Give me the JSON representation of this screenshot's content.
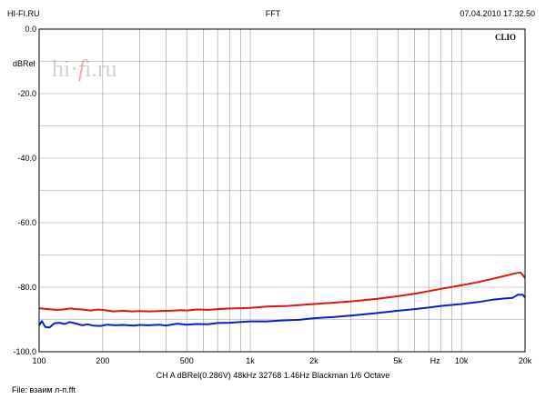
{
  "header": {
    "left": "HI-FI.RU",
    "center": "FFT",
    "right": "07.04.2010 17.32.50"
  },
  "watermark": {
    "pre": "hi·",
    "f": "f",
    "post": "i.ru"
  },
  "brand_label": "CLIO",
  "footer": {
    "settings": "CH A   dBRel(0.286V)   48kHz   32768   1.46Hz   Blackman   1/6 Octave",
    "file": "File: взаим л-п.fft"
  },
  "colors": {
    "series_red": "#e01414",
    "series_blue": "#0a1ed2",
    "grid": "#9a9a9a",
    "watermark_f": "#d0504c"
  },
  "chart_data": {
    "type": "line",
    "x_scale": "log",
    "xlim": [
      100,
      20000
    ],
    "ylim": [
      -100,
      0
    ],
    "ylabel": "dBRel",
    "x_ticks": [
      {
        "v": 100,
        "label": "100"
      },
      {
        "v": 200,
        "label": "200"
      },
      {
        "v": 500,
        "label": "500"
      },
      {
        "v": 1000,
        "label": "1k"
      },
      {
        "v": 2000,
        "label": "2k"
      },
      {
        "v": 5000,
        "label": "5k"
      },
      {
        "v": 7500,
        "label": "Hz"
      },
      {
        "v": 10000,
        "label": "10k"
      },
      {
        "v": 20000,
        "label": "20k"
      }
    ],
    "y_ticks": [
      {
        "v": 0,
        "label": "0.0"
      },
      {
        "v": -20,
        "label": "-20.0"
      },
      {
        "v": -40,
        "label": "-40.0"
      },
      {
        "v": -60,
        "label": "-60.0"
      },
      {
        "v": -80,
        "label": "-80.0"
      },
      {
        "v": -100,
        "label": "-100.0"
      }
    ],
    "grid": true,
    "series": [
      {
        "color": "#e01414",
        "points": [
          [
            100,
            -86.5
          ],
          [
            110,
            -86.8
          ],
          [
            120,
            -87.0
          ],
          [
            130,
            -86.9
          ],
          [
            140,
            -86.6
          ],
          [
            150,
            -86.8
          ],
          [
            160,
            -86.9
          ],
          [
            175,
            -87.2
          ],
          [
            190,
            -86.9
          ],
          [
            205,
            -87.1
          ],
          [
            225,
            -87.5
          ],
          [
            250,
            -87.3
          ],
          [
            275,
            -87.5
          ],
          [
            300,
            -87.4
          ],
          [
            330,
            -87.5
          ],
          [
            370,
            -87.4
          ],
          [
            420,
            -87.3
          ],
          [
            470,
            -87.1
          ],
          [
            500,
            -87.2
          ],
          [
            560,
            -86.9
          ],
          [
            630,
            -87.0
          ],
          [
            700,
            -86.8
          ],
          [
            800,
            -86.6
          ],
          [
            900,
            -86.5
          ],
          [
            1000,
            -86.4
          ],
          [
            1200,
            -86.0
          ],
          [
            1500,
            -85.8
          ],
          [
            2000,
            -85.2
          ],
          [
            2500,
            -84.8
          ],
          [
            3000,
            -84.4
          ],
          [
            4000,
            -83.6
          ],
          [
            5000,
            -82.8
          ],
          [
            6000,
            -82.0
          ],
          [
            7000,
            -81.2
          ],
          [
            8000,
            -80.5
          ],
          [
            10000,
            -79.4
          ],
          [
            12000,
            -78.4
          ],
          [
            14000,
            -77.4
          ],
          [
            16000,
            -76.5
          ],
          [
            18000,
            -75.7
          ],
          [
            19000,
            -75.4
          ],
          [
            19500,
            -76.2
          ],
          [
            20000,
            -77.2
          ]
        ]
      },
      {
        "color": "#0a1ed2",
        "points": [
          [
            100,
            -91.8
          ],
          [
            103,
            -90.5
          ],
          [
            107,
            -92.3
          ],
          [
            112,
            -92.5
          ],
          [
            118,
            -91.2
          ],
          [
            125,
            -91.0
          ],
          [
            132,
            -91.4
          ],
          [
            140,
            -90.8
          ],
          [
            150,
            -91.3
          ],
          [
            160,
            -91.8
          ],
          [
            170,
            -91.5
          ],
          [
            180,
            -91.9
          ],
          [
            195,
            -92.0
          ],
          [
            210,
            -91.6
          ],
          [
            230,
            -91.8
          ],
          [
            250,
            -91.7
          ],
          [
            280,
            -91.9
          ],
          [
            300,
            -91.7
          ],
          [
            330,
            -91.8
          ],
          [
            370,
            -91.6
          ],
          [
            400,
            -91.9
          ],
          [
            450,
            -91.3
          ],
          [
            500,
            -91.6
          ],
          [
            560,
            -91.4
          ],
          [
            630,
            -91.5
          ],
          [
            700,
            -91.1
          ],
          [
            800,
            -91.0
          ],
          [
            900,
            -90.8
          ],
          [
            1000,
            -90.6
          ],
          [
            1200,
            -90.6
          ],
          [
            1400,
            -90.3
          ],
          [
            1700,
            -90.1
          ],
          [
            2000,
            -89.6
          ],
          [
            2500,
            -89.2
          ],
          [
            3000,
            -88.8
          ],
          [
            4000,
            -88.0
          ],
          [
            5000,
            -87.3
          ],
          [
            6000,
            -86.8
          ],
          [
            7000,
            -86.3
          ],
          [
            8000,
            -85.8
          ],
          [
            10000,
            -85.2
          ],
          [
            12000,
            -84.6
          ],
          [
            14000,
            -83.9
          ],
          [
            16000,
            -83.5
          ],
          [
            17500,
            -83.3
          ],
          [
            18500,
            -82.3
          ],
          [
            19500,
            -82.3
          ],
          [
            20000,
            -83.2
          ]
        ]
      }
    ]
  }
}
